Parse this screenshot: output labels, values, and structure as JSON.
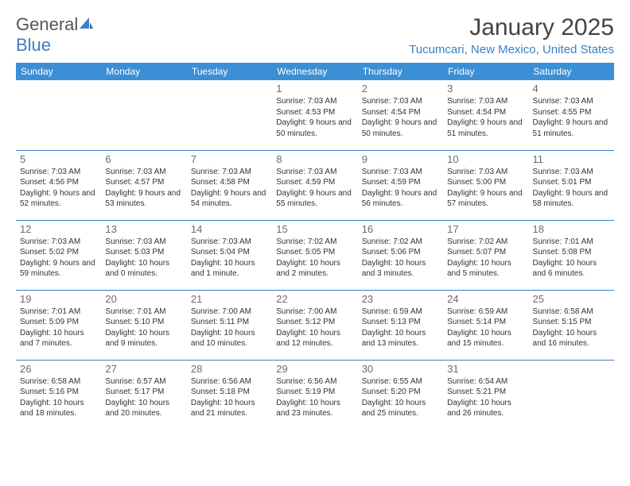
{
  "logo": {
    "text_gray": "General",
    "text_blue": "Blue"
  },
  "title": "January 2025",
  "location": "Tucumcari, New Mexico, United States",
  "colors": {
    "header_bg": "#3b8fd4",
    "header_text": "#ffffff",
    "accent": "#3b7fc4",
    "text": "#333333",
    "day_number": "#6b6b6b",
    "border": "#3b7fc4",
    "background": "#ffffff"
  },
  "day_headers": [
    "Sunday",
    "Monday",
    "Tuesday",
    "Wednesday",
    "Thursday",
    "Friday",
    "Saturday"
  ],
  "weeks": [
    [
      null,
      null,
      null,
      {
        "n": "1",
        "sr": "7:03 AM",
        "ss": "4:53 PM",
        "dl": "9 hours and 50 minutes."
      },
      {
        "n": "2",
        "sr": "7:03 AM",
        "ss": "4:54 PM",
        "dl": "9 hours and 50 minutes."
      },
      {
        "n": "3",
        "sr": "7:03 AM",
        "ss": "4:54 PM",
        "dl": "9 hours and 51 minutes."
      },
      {
        "n": "4",
        "sr": "7:03 AM",
        "ss": "4:55 PM",
        "dl": "9 hours and 51 minutes."
      }
    ],
    [
      {
        "n": "5",
        "sr": "7:03 AM",
        "ss": "4:56 PM",
        "dl": "9 hours and 52 minutes."
      },
      {
        "n": "6",
        "sr": "7:03 AM",
        "ss": "4:57 PM",
        "dl": "9 hours and 53 minutes."
      },
      {
        "n": "7",
        "sr": "7:03 AM",
        "ss": "4:58 PM",
        "dl": "9 hours and 54 minutes."
      },
      {
        "n": "8",
        "sr": "7:03 AM",
        "ss": "4:59 PM",
        "dl": "9 hours and 55 minutes."
      },
      {
        "n": "9",
        "sr": "7:03 AM",
        "ss": "4:59 PM",
        "dl": "9 hours and 56 minutes."
      },
      {
        "n": "10",
        "sr": "7:03 AM",
        "ss": "5:00 PM",
        "dl": "9 hours and 57 minutes."
      },
      {
        "n": "11",
        "sr": "7:03 AM",
        "ss": "5:01 PM",
        "dl": "9 hours and 58 minutes."
      }
    ],
    [
      {
        "n": "12",
        "sr": "7:03 AM",
        "ss": "5:02 PM",
        "dl": "9 hours and 59 minutes."
      },
      {
        "n": "13",
        "sr": "7:03 AM",
        "ss": "5:03 PM",
        "dl": "10 hours and 0 minutes."
      },
      {
        "n": "14",
        "sr": "7:03 AM",
        "ss": "5:04 PM",
        "dl": "10 hours and 1 minute."
      },
      {
        "n": "15",
        "sr": "7:02 AM",
        "ss": "5:05 PM",
        "dl": "10 hours and 2 minutes."
      },
      {
        "n": "16",
        "sr": "7:02 AM",
        "ss": "5:06 PM",
        "dl": "10 hours and 3 minutes."
      },
      {
        "n": "17",
        "sr": "7:02 AM",
        "ss": "5:07 PM",
        "dl": "10 hours and 5 minutes."
      },
      {
        "n": "18",
        "sr": "7:01 AM",
        "ss": "5:08 PM",
        "dl": "10 hours and 6 minutes."
      }
    ],
    [
      {
        "n": "19",
        "sr": "7:01 AM",
        "ss": "5:09 PM",
        "dl": "10 hours and 7 minutes."
      },
      {
        "n": "20",
        "sr": "7:01 AM",
        "ss": "5:10 PM",
        "dl": "10 hours and 9 minutes."
      },
      {
        "n": "21",
        "sr": "7:00 AM",
        "ss": "5:11 PM",
        "dl": "10 hours and 10 minutes."
      },
      {
        "n": "22",
        "sr": "7:00 AM",
        "ss": "5:12 PM",
        "dl": "10 hours and 12 minutes."
      },
      {
        "n": "23",
        "sr": "6:59 AM",
        "ss": "5:13 PM",
        "dl": "10 hours and 13 minutes."
      },
      {
        "n": "24",
        "sr": "6:59 AM",
        "ss": "5:14 PM",
        "dl": "10 hours and 15 minutes."
      },
      {
        "n": "25",
        "sr": "6:58 AM",
        "ss": "5:15 PM",
        "dl": "10 hours and 16 minutes."
      }
    ],
    [
      {
        "n": "26",
        "sr": "6:58 AM",
        "ss": "5:16 PM",
        "dl": "10 hours and 18 minutes."
      },
      {
        "n": "27",
        "sr": "6:57 AM",
        "ss": "5:17 PM",
        "dl": "10 hours and 20 minutes."
      },
      {
        "n": "28",
        "sr": "6:56 AM",
        "ss": "5:18 PM",
        "dl": "10 hours and 21 minutes."
      },
      {
        "n": "29",
        "sr": "6:56 AM",
        "ss": "5:19 PM",
        "dl": "10 hours and 23 minutes."
      },
      {
        "n": "30",
        "sr": "6:55 AM",
        "ss": "5:20 PM",
        "dl": "10 hours and 25 minutes."
      },
      {
        "n": "31",
        "sr": "6:54 AM",
        "ss": "5:21 PM",
        "dl": "10 hours and 26 minutes."
      },
      null
    ]
  ],
  "labels": {
    "sunrise_prefix": "Sunrise: ",
    "sunset_prefix": "Sunset: ",
    "daylight_prefix": "Daylight: "
  }
}
